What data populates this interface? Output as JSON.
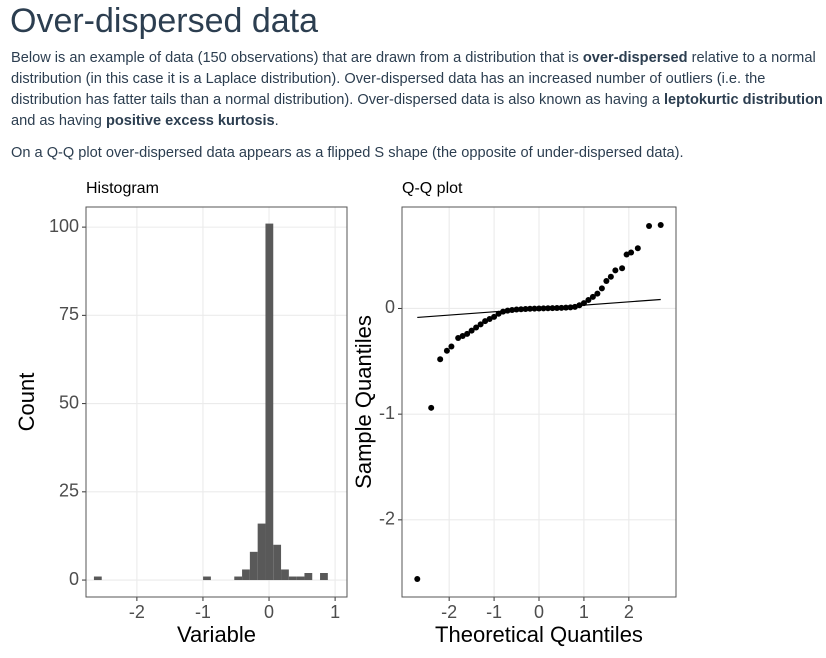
{
  "document": {
    "title": "Over-dispersed data",
    "paragraphs": [
      [
        {
          "text": "Below is an example of data (150 observations) that are drawn from a distribution that is ",
          "bold": false
        },
        {
          "text": "over-dispersed",
          "bold": true
        },
        {
          "text": " relative to a normal distribution (in this case it is a Laplace distribution). Over-dispersed data has an increased number of outliers (i.e. the distribution has fatter tails than a normal distribution). Over-dispersed data is also known as having a ",
          "bold": false
        },
        {
          "text": "leptokurtic distribution",
          "bold": true
        },
        {
          "text": " and as having ",
          "bold": false
        },
        {
          "text": "positive excess kurtosis",
          "bold": true
        },
        {
          "text": ".",
          "bold": false
        }
      ],
      [
        {
          "text": "On a Q-Q plot over-dispersed data appears as a flipped S shape (the opposite of under-dispersed data).",
          "bold": false
        }
      ]
    ]
  },
  "chart_data": [
    {
      "type": "histogram",
      "title": "Histogram",
      "x_label": "Variable",
      "y_label": "Count",
      "bins": [
        -2.65,
        -2.532,
        -2.414,
        -2.296,
        -2.178,
        -2.06,
        -1.942,
        -1.824,
        -1.706,
        -1.588,
        -1.47,
        -1.352,
        -1.234,
        -1.116,
        -0.998,
        -0.88,
        -0.762,
        -0.644,
        -0.526,
        -0.408,
        -0.29,
        -0.172,
        -0.054,
        0.064,
        0.182,
        0.3,
        0.418,
        0.536,
        0.654,
        0.772,
        0.89
      ],
      "counts": [
        1,
        0,
        0,
        0,
        0,
        0,
        0,
        0,
        0,
        0,
        0,
        0,
        0,
        0,
        1,
        0,
        0,
        0,
        1,
        3,
        8,
        16,
        101,
        10,
        3,
        1,
        1,
        2,
        0,
        2
      ],
      "color": "#595959",
      "xlim": [
        -2.77,
        1.18
      ],
      "ylim": [
        -4.8,
        105.7
      ],
      "xticks": [
        -2,
        -1,
        0,
        1
      ],
      "yticks": [
        0,
        25,
        50,
        75,
        100
      ],
      "grid": true
    },
    {
      "type": "qq",
      "title": "Q-Q plot",
      "x_label": "Theoretical Quantiles",
      "y_label": "Sample Quantiles",
      "x": [
        -2.71,
        -2.4,
        -2.2,
        -2.05,
        -1.95,
        -1.8,
        -1.7,
        -1.6,
        -1.5,
        -1.4,
        -1.3,
        -1.2,
        -1.1,
        -1.0,
        -0.9,
        -0.8,
        -0.7,
        -0.6,
        -0.5,
        -0.4,
        -0.3,
        -0.2,
        -0.1,
        0,
        0.1,
        0.2,
        0.3,
        0.4,
        0.5,
        0.6,
        0.7,
        0.8,
        0.9,
        1.0,
        1.1,
        1.2,
        1.3,
        1.4,
        1.5,
        1.6,
        1.7,
        1.85,
        1.95,
        2.05,
        2.2,
        2.45,
        2.71
      ],
      "values": [
        -2.56,
        -0.94,
        -0.48,
        -0.4,
        -0.36,
        -0.28,
        -0.26,
        -0.24,
        -0.21,
        -0.18,
        -0.15,
        -0.12,
        -0.1,
        -0.08,
        -0.05,
        -0.03,
        -0.02,
        -0.015,
        -0.01,
        -0.008,
        -0.005,
        -0.003,
        -0.001,
        0,
        0.001,
        0.002,
        0.003,
        0.004,
        0.006,
        0.008,
        0.01,
        0.015,
        0.03,
        0.05,
        0.08,
        0.11,
        0.14,
        0.19,
        0.26,
        0.3,
        0.36,
        0.38,
        0.51,
        0.53,
        0.57,
        0.78,
        0.79
      ],
      "color": "#000000",
      "line": {
        "x": [
          -2.71,
          2.71
        ],
        "values": [
          -0.085,
          0.085
        ],
        "color": "#000000"
      },
      "xlim": [
        -3.05,
        3.05
      ],
      "ylim": [
        -2.73,
        0.96
      ],
      "xticks": [
        -2,
        -1,
        0,
        1,
        2
      ],
      "yticks": [
        -2,
        -1,
        0
      ],
      "grid": true
    }
  ]
}
